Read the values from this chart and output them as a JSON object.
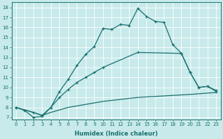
{
  "xlabel": "Humidex (Indice chaleur)",
  "background_color": "#c8eaea",
  "grid_color": "#ffffff",
  "line_color": "#1a7070",
  "xlim": [
    -0.5,
    23.5
  ],
  "ylim": [
    6.8,
    18.5
  ],
  "yticks": [
    7,
    8,
    9,
    10,
    11,
    12,
    13,
    14,
    15,
    16,
    17,
    18
  ],
  "xticks": [
    0,
    1,
    2,
    3,
    4,
    5,
    6,
    7,
    8,
    9,
    10,
    11,
    12,
    13,
    14,
    15,
    16,
    17,
    18,
    19,
    20,
    21,
    22,
    23
  ],
  "series1": [
    [
      0,
      8.0
    ],
    [
      1,
      7.7
    ],
    [
      2,
      7.0
    ],
    [
      3,
      7.1
    ],
    [
      4,
      8.0
    ],
    [
      5,
      9.6
    ],
    [
      6,
      10.8
    ],
    [
      7,
      12.2
    ],
    [
      8,
      13.3
    ],
    [
      9,
      14.1
    ],
    [
      10,
      15.9
    ],
    [
      11,
      15.8
    ],
    [
      12,
      16.3
    ],
    [
      13,
      16.2
    ],
    [
      14,
      17.9
    ],
    [
      15,
      17.1
    ],
    [
      16,
      16.6
    ],
    [
      17,
      16.5
    ],
    [
      18,
      14.3
    ],
    [
      19,
      13.4
    ],
    [
      20,
      11.5
    ],
    [
      21,
      10.0
    ],
    [
      22,
      10.1
    ],
    [
      23,
      9.6
    ]
  ],
  "series2": [
    [
      0,
      8.0
    ],
    [
      2,
      7.5
    ],
    [
      3,
      7.2
    ],
    [
      4,
      8.0
    ],
    [
      5,
      9.0
    ],
    [
      6,
      9.8
    ],
    [
      7,
      10.5
    ],
    [
      8,
      11.0
    ],
    [
      9,
      11.5
    ],
    [
      10,
      12.0
    ],
    [
      14,
      13.5
    ],
    [
      19,
      13.4
    ],
    [
      20,
      11.5
    ],
    [
      21,
      10.0
    ],
    [
      22,
      10.1
    ],
    [
      23,
      9.7
    ]
  ],
  "series3": [
    [
      0,
      8.0
    ],
    [
      2,
      7.5
    ],
    [
      3,
      7.2
    ],
    [
      4,
      7.5
    ],
    [
      6,
      8.0
    ],
    [
      8,
      8.3
    ],
    [
      10,
      8.6
    ],
    [
      14,
      9.0
    ],
    [
      20,
      9.3
    ],
    [
      23,
      9.5
    ]
  ]
}
